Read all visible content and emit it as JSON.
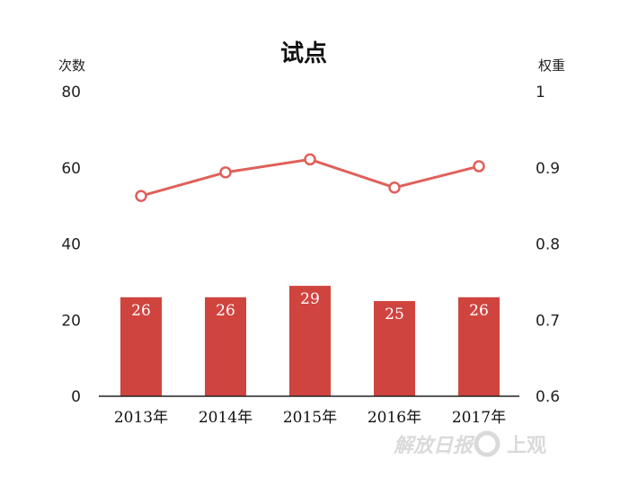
{
  "chart_data": {
    "type": "bar+line",
    "title": "试点",
    "categories": [
      "2013年",
      "2014年",
      "2015年",
      "2016年",
      "2017年"
    ],
    "y_left": {
      "label": "次数",
      "ticks": [
        "80",
        "60",
        "40",
        "20",
        "0"
      ],
      "range": [
        0,
        80
      ]
    },
    "y_right": {
      "label": "权重",
      "ticks": [
        "1",
        "0.9",
        "0.8",
        "0.7",
        "0.6"
      ],
      "range": [
        0.6,
        1.0
      ]
    },
    "series": [
      {
        "type": "bar",
        "axis": "left",
        "values": [
          26,
          26,
          29,
          25,
          26
        ],
        "color": "#d0443f"
      },
      {
        "type": "line",
        "axis": "right",
        "values": [
          0.863,
          0.894,
          0.911,
          0.874,
          0.902
        ],
        "color": "#e0605a"
      }
    ],
    "grid": false
  },
  "watermark": {
    "logo_text": "解放日报",
    "brand_text": "上观"
  }
}
